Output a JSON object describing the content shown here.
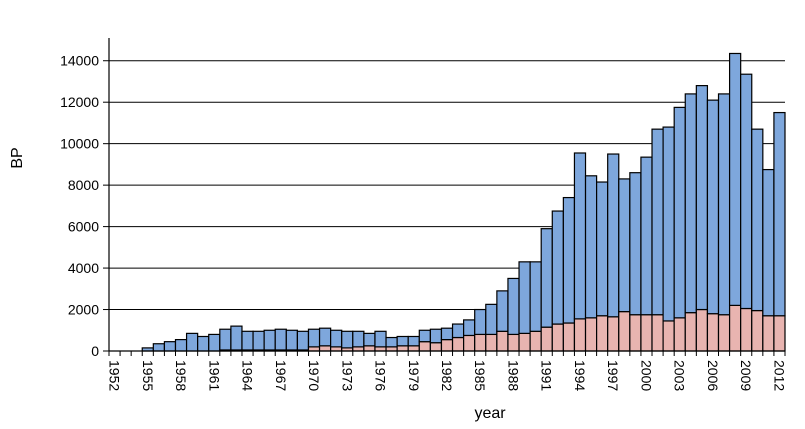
{
  "chart_data": {
    "type": "bar",
    "stacked": true,
    "xlabel": "year",
    "ylabel": "BP",
    "ylim": [
      0,
      15000
    ],
    "yticks": [
      0,
      2000,
      4000,
      6000,
      8000,
      10000,
      12000,
      14000
    ],
    "ytick_labels": [
      "0",
      "2000",
      "4000",
      "6000",
      "8000",
      "10000",
      "12000",
      "14000"
    ],
    "grid": "horizontal",
    "x_tick_labels": [
      "1952",
      "1955",
      "1958",
      "1961",
      "1964",
      "1967",
      "1970",
      "1973",
      "1976",
      "1979",
      "1982",
      "1985",
      "1988",
      "1991",
      "1994",
      "1997",
      "2000",
      "2003",
      "2006",
      "2009",
      "2012"
    ],
    "x_tick_step": 3,
    "categories": [
      1952,
      1953,
      1954,
      1955,
      1956,
      1957,
      1958,
      1959,
      1960,
      1961,
      1962,
      1963,
      1964,
      1965,
      1966,
      1967,
      1968,
      1969,
      1970,
      1971,
      1972,
      1973,
      1974,
      1975,
      1976,
      1977,
      1978,
      1979,
      1980,
      1981,
      1982,
      1983,
      1984,
      1985,
      1986,
      1987,
      1988,
      1989,
      1990,
      1991,
      1992,
      1993,
      1994,
      1995,
      1996,
      1997,
      1998,
      1999,
      2000,
      2001,
      2002,
      2003,
      2004,
      2005,
      2006,
      2007,
      2008,
      2009,
      2010,
      2011,
      2012
    ],
    "series": [
      {
        "color": "#e8b4b0",
        "values": [
          0,
          0,
          0,
          0,
          0,
          0,
          0,
          0,
          0,
          0,
          50,
          50,
          50,
          50,
          50,
          50,
          50,
          50,
          200,
          250,
          200,
          150,
          200,
          250,
          200,
          200,
          250,
          250,
          450,
          400,
          550,
          650,
          750,
          800,
          800,
          950,
          800,
          850,
          950,
          1150,
          1300,
          1350,
          1550,
          1600,
          1700,
          1650,
          1900,
          1750,
          1750,
          1750,
          1450,
          1600,
          1850,
          2000,
          1800,
          1750,
          2200,
          2050,
          1950,
          1700,
          1700
        ]
      },
      {
        "color": "#7ea7dc",
        "values": [
          0,
          0,
          0,
          150,
          350,
          450,
          550,
          850,
          700,
          800,
          1000,
          1150,
          900,
          900,
          950,
          1000,
          950,
          900,
          850,
          850,
          800,
          800,
          750,
          600,
          750,
          450,
          450,
          450,
          550,
          650,
          550,
          650,
          750,
          1200,
          1450,
          1950,
          2700,
          3450,
          3350,
          4750,
          5450,
          6050,
          8000,
          6850,
          6450,
          7850,
          6400,
          6850,
          7600,
          8950,
          9350,
          10150,
          10550,
          10800,
          10300,
          10650,
          12150,
          11300,
          8750,
          7050,
          9800
        ]
      }
    ]
  }
}
